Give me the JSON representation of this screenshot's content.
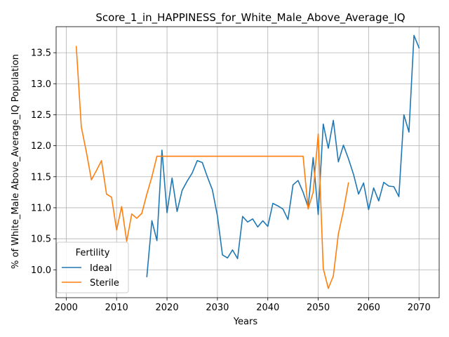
{
  "chart_data": {
    "type": "line",
    "title": "Score_1_in_HAPPINESS_for_White_Male_Above_Average_IQ",
    "xlabel": "Years",
    "ylabel": "% of White_Male Above_Average_IQ Population",
    "xlim": [
      1998,
      2074
    ],
    "ylim": [
      9.55,
      13.92
    ],
    "xticks": [
      2000,
      2010,
      2020,
      2030,
      2040,
      2050,
      2060,
      2070
    ],
    "yticks": [
      10.0,
      10.5,
      11.0,
      11.5,
      12.0,
      12.5,
      13.0,
      13.5
    ],
    "xtick_labels": [
      "2000",
      "2010",
      "2020",
      "2030",
      "2040",
      "2050",
      "2060",
      "2070"
    ],
    "ytick_labels": [
      "10.0",
      "10.5",
      "11.0",
      "11.5",
      "12.0",
      "12.5",
      "13.0",
      "13.5"
    ],
    "grid": true,
    "legend": {
      "title": "Fertility",
      "position": "lower-left"
    },
    "series": [
      {
        "name": "Ideal",
        "color": "#1f77b4",
        "x": [
          2016,
          2017,
          2018,
          2019,
          2020,
          2021,
          2022,
          2023,
          2024,
          2025,
          2026,
          2027,
          2028,
          2029,
          2030,
          2031,
          2032,
          2033,
          2034,
          2035,
          2036,
          2037,
          2038,
          2039,
          2040,
          2041,
          2042,
          2043,
          2044,
          2045,
          2046,
          2047,
          2048,
          2049,
          2050,
          2051,
          2052,
          2053,
          2054,
          2055,
          2056,
          2057,
          2058,
          2059,
          2060,
          2061,
          2062,
          2063,
          2064,
          2065,
          2066,
          2067,
          2068,
          2069,
          2070
        ],
        "values": [
          9.89,
          10.79,
          10.47,
          11.93,
          10.92,
          11.48,
          10.94,
          11.28,
          11.43,
          11.56,
          11.76,
          11.73,
          11.5,
          11.29,
          10.87,
          10.24,
          10.19,
          10.32,
          10.18,
          10.86,
          10.77,
          10.82,
          10.69,
          10.79,
          10.7,
          11.07,
          11.03,
          10.98,
          10.81,
          11.37,
          11.44,
          11.25,
          11.01,
          11.81,
          10.89,
          12.35,
          11.96,
          12.41,
          11.74,
          12.01,
          11.79,
          11.54,
          11.22,
          11.4,
          10.97,
          11.32,
          11.11,
          11.41,
          11.35,
          11.34,
          11.18,
          12.5,
          12.22,
          13.78,
          13.58
        ]
      },
      {
        "name": "Sterile",
        "color": "#ff7f0e",
        "x": [
          2002,
          2003,
          2004,
          2005,
          2006,
          2007,
          2008,
          2009,
          2010,
          2011,
          2012,
          2013,
          2014,
          2015,
          2016,
          2017,
          2018,
          2019,
          2020,
          2025,
          2030,
          2035,
          2040,
          2045,
          2047,
          2048,
          2049,
          2050,
          2051,
          2052,
          2053,
          2054,
          2055,
          2056
        ],
        "values": [
          13.6,
          12.3,
          11.9,
          11.45,
          11.6,
          11.76,
          11.22,
          11.17,
          10.64,
          11.02,
          10.46,
          10.9,
          10.83,
          10.91,
          11.22,
          11.5,
          11.83,
          11.83,
          11.83,
          11.83,
          11.83,
          11.83,
          11.83,
          11.83,
          11.83,
          10.98,
          11.25,
          12.19,
          10.02,
          9.7,
          9.9,
          10.58,
          10.95,
          11.4
        ]
      }
    ]
  }
}
